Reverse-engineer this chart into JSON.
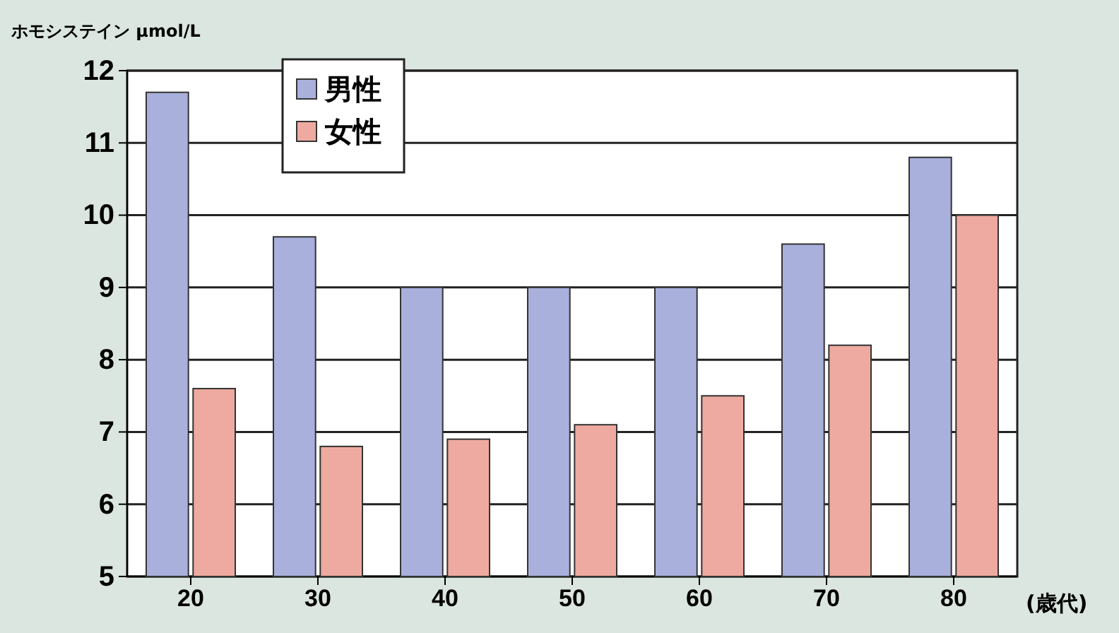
{
  "chart_data": {
    "type": "bar",
    "ylabel": "ホモシステイン μmol/L",
    "xlabel": "(歳代)",
    "categories": [
      "20",
      "30",
      "40",
      "50",
      "60",
      "70",
      "80"
    ],
    "series": [
      {
        "name": "男性",
        "color": "#aab0dc",
        "values": [
          11.7,
          9.7,
          9.0,
          9.0,
          9.0,
          9.6,
          10.8
        ]
      },
      {
        "name": "女性",
        "color": "#eeaaa0",
        "values": [
          7.6,
          6.8,
          6.9,
          7.1,
          7.5,
          8.2,
          10.0
        ]
      }
    ],
    "ylim": [
      5,
      12
    ],
    "yticks": [
      5,
      6,
      7,
      8,
      9,
      10,
      11,
      12
    ],
    "grid": "y",
    "legend": "top left"
  }
}
